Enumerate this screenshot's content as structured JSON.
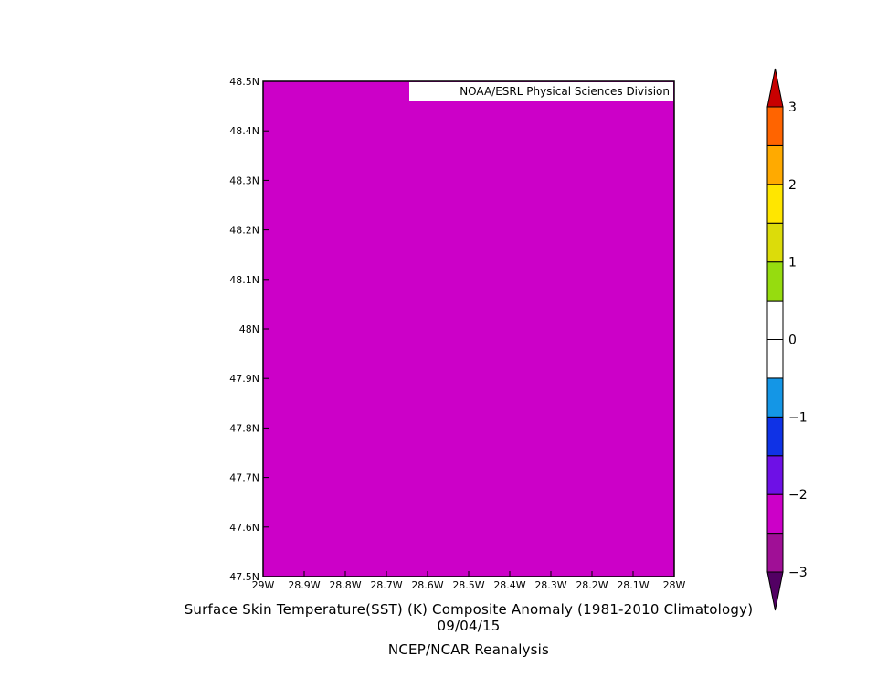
{
  "chart_data": {
    "type": "heatmap",
    "title": "Surface Skin Temperature(SST) (K) Composite Anomaly (1981-2010 Climatology)",
    "subtitle": "09/04/15",
    "source": "NCEP/NCAR Reanalysis",
    "credit": "NOAA/ESRL Physical Sciences Division",
    "x_ticks": [
      "29W",
      "28.9W",
      "28.8W",
      "28.7W",
      "28.6W",
      "28.5W",
      "28.4W",
      "28.3W",
      "28.2W",
      "28.1W",
      "28W"
    ],
    "y_ticks": [
      "47.5N",
      "47.6N",
      "47.7N",
      "47.8N",
      "47.9N",
      "48N",
      "48.1N",
      "48.2N",
      "48.3N",
      "48.4N",
      "48.5N"
    ],
    "xlim": [
      -29,
      -28
    ],
    "ylim": [
      47.5,
      48.5
    ],
    "field_value_range": [
      -2.5,
      -2.0
    ],
    "field_color": "#cc00c8",
    "colorbar": {
      "bins": [
        {
          "from": -3.5,
          "to": -3.0,
          "color": "#520063"
        },
        {
          "from": -3.0,
          "to": -2.5,
          "color": "#a00f96"
        },
        {
          "from": -2.5,
          "to": -2.0,
          "color": "#cc00c8"
        },
        {
          "from": -2.0,
          "to": -1.5,
          "color": "#6e10e6"
        },
        {
          "from": -1.5,
          "to": -1.0,
          "color": "#0f32e6"
        },
        {
          "from": -1.0,
          "to": -0.5,
          "color": "#1496e6"
        },
        {
          "from": -0.5,
          "to": 0.0,
          "color": "#ffffff"
        },
        {
          "from": 0.0,
          "to": 0.5,
          "color": "#ffffff"
        },
        {
          "from": 0.5,
          "to": 1.0,
          "color": "#96dc0f"
        },
        {
          "from": 1.0,
          "to": 1.5,
          "color": "#dcdc0a"
        },
        {
          "from": 1.5,
          "to": 2.0,
          "color": "#ffe600"
        },
        {
          "from": 2.0,
          "to": 2.5,
          "color": "#ffaa00"
        },
        {
          "from": 2.5,
          "to": 3.0,
          "color": "#ff6400"
        },
        {
          "from": 3.0,
          "to": 3.5,
          "color": "#c80000"
        }
      ],
      "tick_labels": [
        "-3",
        "-2",
        "-1",
        "0",
        "1",
        "2",
        "3"
      ]
    }
  }
}
